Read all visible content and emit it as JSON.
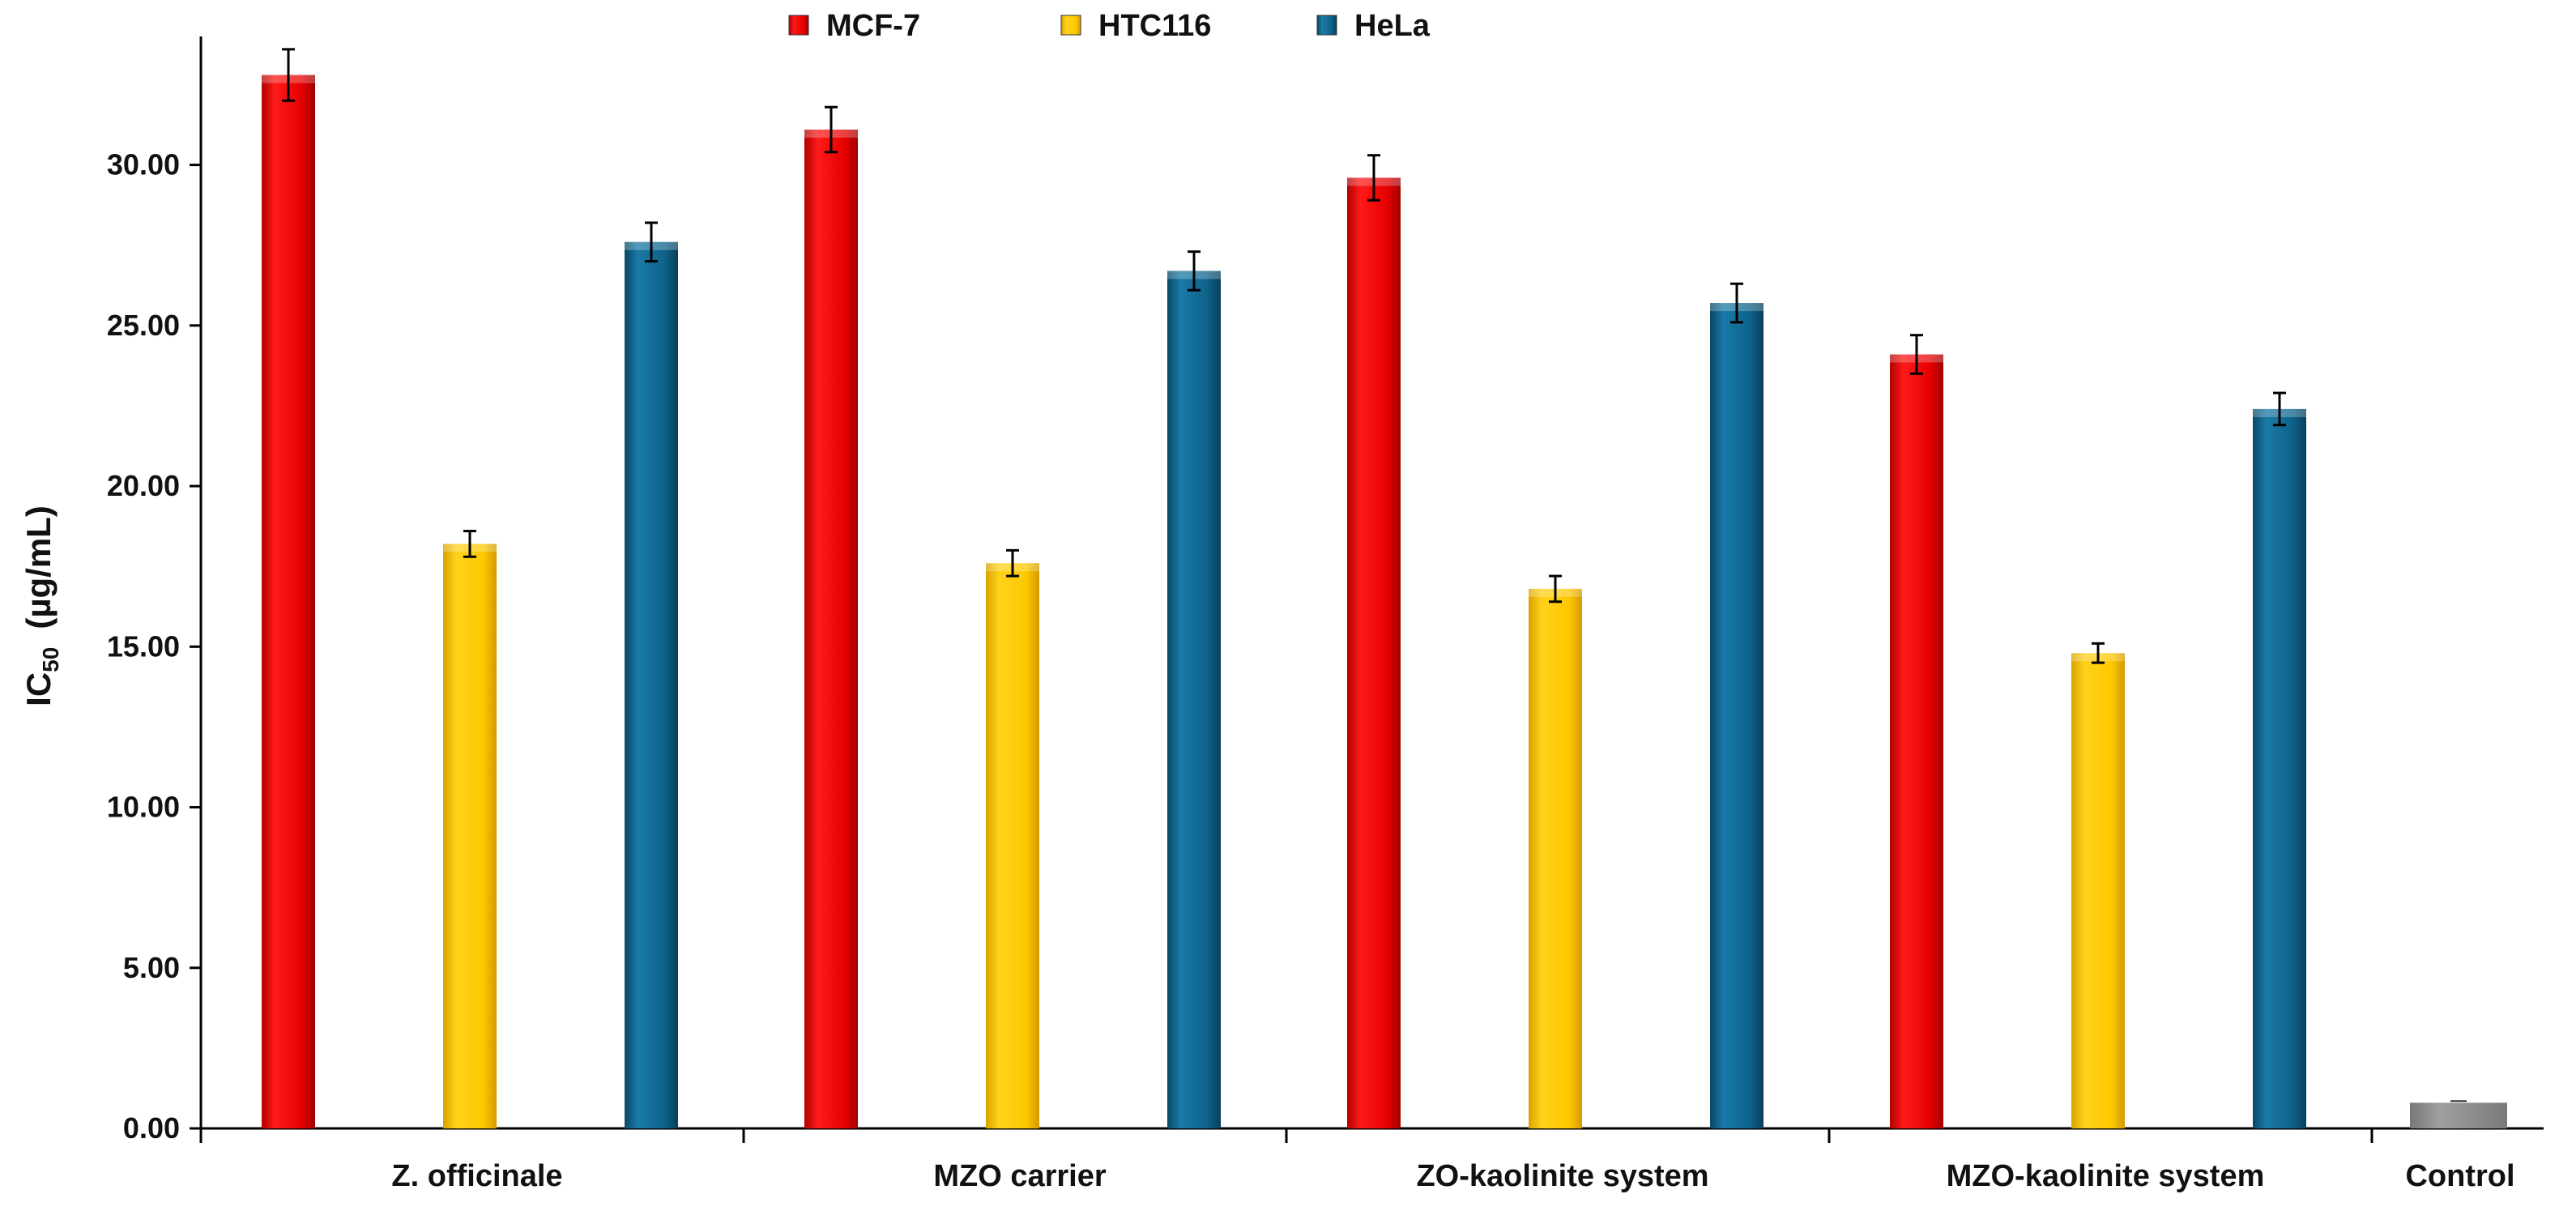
{
  "chart_data": {
    "type": "bar",
    "title": "",
    "xlabel": "",
    "ylabel": {
      "main": "IC",
      "subscript": "50",
      "units": "(µg/mL)"
    },
    "ylim": [
      0,
      34
    ],
    "yticks": [
      "0.00",
      "5.00",
      "10.00",
      "15.00",
      "20.00",
      "25.00",
      "30.00"
    ],
    "ytick_values": [
      0,
      5,
      10,
      15,
      20,
      25,
      30
    ],
    "categories": [
      "Z. officinale",
      "MZO carrier",
      "ZO-kaolinite system",
      "MZO-kaolinite system",
      "Control"
    ],
    "series": [
      {
        "name": "MCF-7",
        "color": "#e60000",
        "values": [
          32.8,
          31.1,
          29.6,
          24.1,
          null
        ],
        "errors": [
          0.8,
          0.7,
          0.7,
          0.6,
          null
        ]
      },
      {
        "name": "HTC116",
        "color": "#ffc800",
        "values": [
          18.2,
          17.6,
          16.8,
          14.8,
          null
        ],
        "errors": [
          0.4,
          0.4,
          0.4,
          0.3,
          null
        ]
      },
      {
        "name": "HeLa",
        "color": "#0e6289",
        "values": [
          27.6,
          26.7,
          25.7,
          22.4,
          null
        ],
        "errors": [
          0.6,
          0.6,
          0.6,
          0.5,
          null
        ]
      }
    ],
    "control": {
      "name": "Control",
      "color": "#8c8c8c",
      "value": 0.8
    },
    "legend": {
      "position": "top-center"
    },
    "grid": false
  }
}
